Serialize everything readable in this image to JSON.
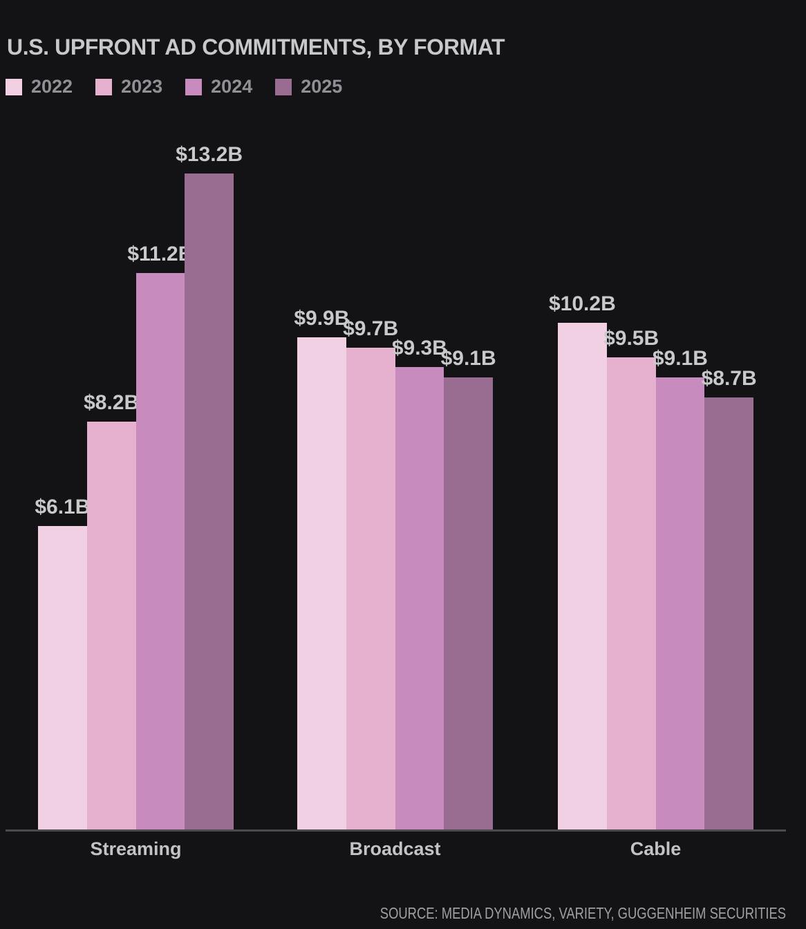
{
  "header": {
    "title": "U.S. UPFRONT AD COMMITMENTS, BY FORMAT"
  },
  "footer": {
    "source": "SOURCE: MEDIA DYNAMICS, VARIETY, GUGGENHEIM SECURITIES"
  },
  "colors": {
    "background": "#131316",
    "title_text": "#c7c8ca",
    "legend_text": "#909196",
    "value_label_text": "#c8c9cb",
    "category_label_text": "#c2c3c5",
    "source_text": "#9ea0a3",
    "axis_line": "#4b4b4f",
    "series_2022": "#f2d0e4",
    "series_2023": "#e6b1cf",
    "series_2024": "#c78cbd",
    "series_2025": "#996d91"
  },
  "chart_data": {
    "type": "bar",
    "title": "U.S. UPFRONT AD COMMITMENTS, BY FORMAT",
    "categories": [
      "Streaming",
      "Broadcast",
      "Cable"
    ],
    "series": [
      {
        "name": "2022",
        "color": "#f2d0e4",
        "values": [
          6.1,
          9.9,
          10.2
        ],
        "data_labels": [
          "$6.1B",
          "$9.9B",
          "$10.2B"
        ]
      },
      {
        "name": "2023",
        "color": "#e6b1cf",
        "values": [
          8.2,
          9.7,
          9.5
        ],
        "data_labels": [
          "$8.2B",
          "$9.7B",
          "$9.5B"
        ]
      },
      {
        "name": "2024",
        "color": "#c78cbd",
        "values": [
          11.2,
          9.3,
          9.1
        ],
        "data_labels": [
          "$11.2B",
          "$9.3B",
          "$9.1B"
        ]
      },
      {
        "name": "2025",
        "color": "#996d91",
        "values": [
          13.2,
          9.1,
          8.7
        ],
        "data_labels": [
          "$13.2B",
          "$9.1B",
          "$8.7B"
        ]
      }
    ],
    "unit": "billions USD",
    "ylim": [
      0,
      13.2
    ],
    "grid": false,
    "legend_position": "top-left",
    "value_labels_shown": true,
    "source": "SOURCE: MEDIA DYNAMICS, VARIETY, GUGGENHEIM SECURITIES"
  }
}
